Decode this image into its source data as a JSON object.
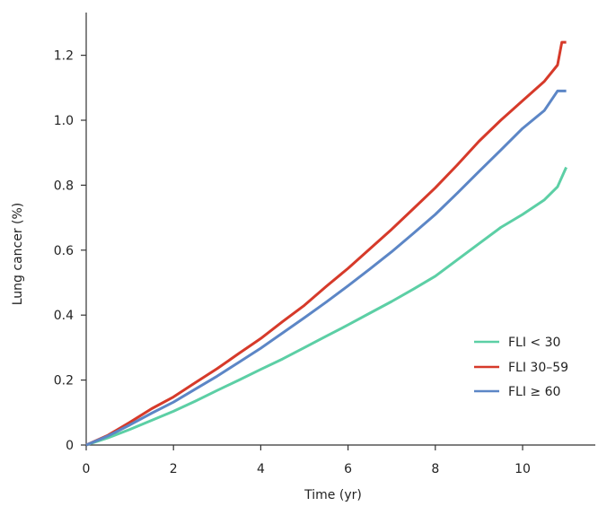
{
  "chart_data": {
    "type": "line",
    "title": "",
    "xlabel": "Time (yr)",
    "ylabel": "Lung cancer (%)",
    "xlim": [
      0,
      11.5
    ],
    "ylim": [
      0,
      1.3
    ],
    "xticks": [
      0,
      2,
      4,
      6,
      8,
      10
    ],
    "yticks": [
      0,
      0.2,
      0.4,
      0.6,
      0.8,
      1.0,
      1.2
    ],
    "xtick_labels": [
      "0",
      "2",
      "4",
      "6",
      "8",
      "10"
    ],
    "ytick_labels": [
      "0",
      "0.2",
      "0.4",
      "0.6",
      "0.8",
      "1.0",
      "1.2"
    ],
    "grid": false,
    "legend_position": "right",
    "series": [
      {
        "name": "FLI < 30",
        "color": "#5ccfa5",
        "x": [
          0,
          0.5,
          1,
          1.5,
          2,
          2.5,
          3,
          3.5,
          4,
          4.5,
          5,
          5.5,
          6,
          6.5,
          7,
          7.5,
          8,
          8.5,
          9,
          9.5,
          10,
          10.5,
          10.8,
          11
        ],
        "y": [
          0,
          0.022,
          0.048,
          0.076,
          0.104,
          0.135,
          0.168,
          0.2,
          0.233,
          0.265,
          0.3,
          0.335,
          0.37,
          0.406,
          0.442,
          0.48,
          0.52,
          0.57,
          0.62,
          0.67,
          0.71,
          0.755,
          0.795,
          0.855
        ]
      },
      {
        "name": "FLI 30–59",
        "color": "#d63a2a",
        "x": [
          0,
          0.5,
          1,
          1.5,
          2,
          2.5,
          3,
          3.5,
          4,
          4.5,
          5,
          5.5,
          6,
          6.5,
          7,
          7.5,
          8,
          8.5,
          9,
          9.5,
          10,
          10.5,
          10.8,
          10.9,
          11
        ],
        "y": [
          0,
          0.03,
          0.07,
          0.112,
          0.148,
          0.192,
          0.235,
          0.282,
          0.328,
          0.38,
          0.43,
          0.488,
          0.544,
          0.604,
          0.664,
          0.728,
          0.792,
          0.862,
          0.935,
          1.0,
          1.06,
          1.12,
          1.17,
          1.24,
          1.24
        ]
      },
      {
        "name": "FLI ≥ 60",
        "color": "#5c86c6",
        "x": [
          0,
          0.5,
          1,
          1.5,
          2,
          2.5,
          3,
          3.5,
          4,
          4.5,
          5,
          5.5,
          6,
          6.5,
          7,
          7.5,
          8,
          8.5,
          9,
          9.5,
          10,
          10.5,
          10.8,
          11
        ],
        "y": [
          0,
          0.028,
          0.062,
          0.098,
          0.132,
          0.172,
          0.212,
          0.255,
          0.298,
          0.345,
          0.392,
          0.44,
          0.49,
          0.542,
          0.595,
          0.652,
          0.71,
          0.775,
          0.842,
          0.908,
          0.975,
          1.03,
          1.09,
          1.09
        ]
      }
    ]
  }
}
